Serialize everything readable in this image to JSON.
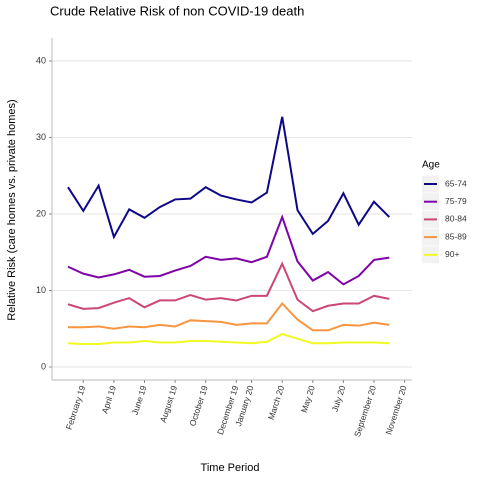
{
  "chart_data": {
    "type": "line",
    "title": "Crude Relative Risk of non COVID-19 death",
    "x_label": "Time Period",
    "y_label": "Relative Risk (care homes vs. private homes)",
    "legend_title": "Age",
    "legend": "right",
    "grid": true,
    "categories": [
      null,
      "February 19",
      null,
      "April 19",
      null,
      "June 19",
      null,
      "August 19",
      null,
      "October 19",
      null,
      "December 19",
      "January 20",
      null,
      "March 20",
      null,
      "May 20",
      null,
      "July 20",
      null,
      "September 20",
      null,
      "November 20"
    ],
    "ylim": [
      -1.7,
      43
    ],
    "yticks": [
      0,
      10,
      20,
      30,
      40
    ],
    "series": [
      {
        "name": "65-74",
        "color": "#0d0887",
        "values": [
          23.5,
          20.4,
          23.7,
          17.0,
          20.6,
          19.5,
          20.9,
          21.9,
          22.0,
          23.5,
          22.4,
          21.9,
          21.5,
          22.8,
          32.7,
          20.5,
          17.4,
          19.1,
          22.7,
          18.6,
          21.6,
          19.6,
          null
        ]
      },
      {
        "name": "75-79",
        "color": "#7e03a8",
        "values": [
          13.1,
          12.2,
          11.7,
          12.1,
          12.7,
          11.8,
          11.9,
          12.6,
          13.2,
          14.4,
          14.0,
          14.2,
          13.7,
          14.4,
          19.6,
          13.8,
          11.3,
          12.4,
          10.8,
          11.9,
          14.0,
          14.3,
          null
        ]
      },
      {
        "name": "80-84",
        "color": "#cc4778",
        "values": [
          8.2,
          7.6,
          7.7,
          8.4,
          9.0,
          7.8,
          8.7,
          8.7,
          9.4,
          8.8,
          9.0,
          8.7,
          9.3,
          9.3,
          13.5,
          8.8,
          7.3,
          8.0,
          8.3,
          8.3,
          9.3,
          8.9,
          null
        ]
      },
      {
        "name": "85-89",
        "color": "#f89540",
        "values": [
          5.2,
          5.2,
          5.3,
          5.0,
          5.3,
          5.2,
          5.5,
          5.3,
          6.1,
          6.0,
          5.9,
          5.5,
          5.7,
          5.7,
          8.3,
          6.2,
          4.8,
          4.8,
          5.5,
          5.4,
          5.8,
          5.5,
          null
        ]
      },
      {
        "name": "90+",
        "color": "#f0f921",
        "values": [
          3.1,
          3.0,
          3.0,
          3.2,
          3.2,
          3.4,
          3.2,
          3.2,
          3.4,
          3.4,
          3.3,
          3.2,
          3.1,
          3.3,
          4.3,
          3.7,
          3.1,
          3.1,
          3.2,
          3.2,
          3.2,
          3.1,
          null
        ]
      }
    ]
  }
}
